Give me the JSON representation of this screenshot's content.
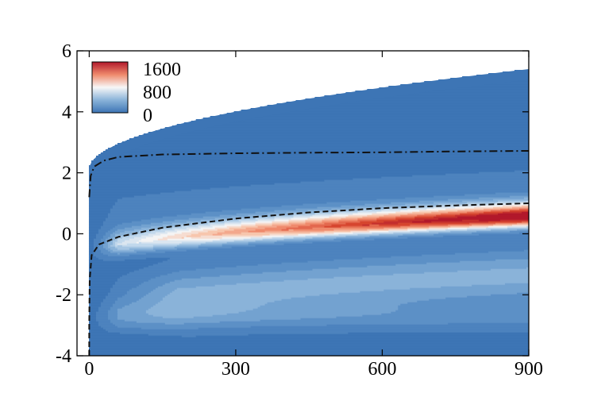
{
  "chart_data": {
    "type": "heatmap",
    "title": "",
    "xlabel": "",
    "ylabel": "",
    "xlim": [
      -25,
      900
    ],
    "ylim": [
      -4,
      6
    ],
    "x_ticks": [
      0,
      300,
      600,
      900
    ],
    "x_tick_labels": [
      "0",
      "300",
      "600",
      "900"
    ],
    "y_ticks": [
      -4,
      -2,
      0,
      2,
      4,
      6
    ],
    "y_tick_labels": [
      "-4",
      "-2",
      "0",
      "2",
      "4",
      "6"
    ],
    "grid": false,
    "legend": {
      "placement": "top-left",
      "levels": [
        "1600",
        "800",
        "0"
      ],
      "colors": [
        "#b2182b",
        "#f7f7f7",
        "#3d75b5"
      ]
    },
    "colorscale": {
      "min": 0,
      "max": 1600,
      "stops": [
        {
          "value": 0,
          "color": "#3d75b5"
        },
        {
          "value": 200,
          "color": "#5c90c6"
        },
        {
          "value": 400,
          "color": "#8ab3d9"
        },
        {
          "value": 600,
          "color": "#c1d8ec"
        },
        {
          "value": 800,
          "color": "#f4f4f4"
        },
        {
          "value": 1000,
          "color": "#f7c6ad"
        },
        {
          "value": 1200,
          "color": "#ef8a6c"
        },
        {
          "value": 1400,
          "color": "#d6452f"
        },
        {
          "value": 1600,
          "color": "#b2182b"
        }
      ]
    },
    "series": [
      {
        "style": "dashed",
        "points": [
          [
            0,
            -4
          ],
          [
            0,
            -3
          ],
          [
            1,
            -1.5
          ],
          [
            5,
            -0.7
          ],
          [
            20,
            -0.35
          ],
          [
            60,
            -0.1
          ],
          [
            150,
            0.2
          ],
          [
            300,
            0.5
          ],
          [
            450,
            0.7
          ],
          [
            600,
            0.84
          ],
          [
            750,
            0.93
          ],
          [
            900,
            1.0
          ]
        ]
      },
      {
        "style": "dashdot",
        "points": [
          [
            0,
            1.2
          ],
          [
            3,
            1.9
          ],
          [
            10,
            2.2
          ],
          [
            30,
            2.4
          ],
          [
            60,
            2.52
          ],
          [
            150,
            2.6
          ],
          [
            300,
            2.64
          ],
          [
            450,
            2.66
          ],
          [
            600,
            2.67
          ],
          [
            750,
            2.7
          ],
          [
            900,
            2.72
          ]
        ]
      }
    ]
  }
}
